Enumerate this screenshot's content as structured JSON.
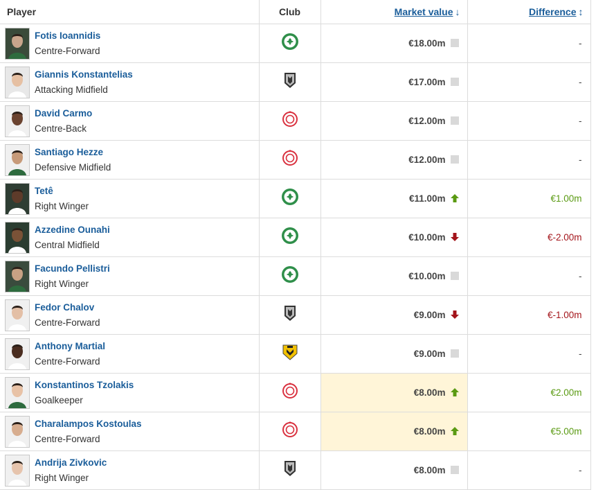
{
  "headers": {
    "player": "Player",
    "club": "Club",
    "market_value": "Market value",
    "market_value_sort_icon": "sort-desc-icon",
    "difference": "Difference",
    "difference_sort_icon": "sort-both-icon"
  },
  "colors": {
    "link": "#1a5d9a",
    "up": "#5a9a12",
    "down": "#a3141a",
    "highlight": "#fff5d8",
    "panathinaikos": "#2f8f4a",
    "paok": "#333333",
    "olympiacos": "#d9303e",
    "aek": "#f2c100"
  },
  "rows": [
    {
      "name": "Fotis Ioannidis",
      "position": "Centre-Forward",
      "club_icon": "panathinaikos-logo-icon",
      "value": "€18.00m",
      "trend": "none",
      "difference": "-"
    },
    {
      "name": "Giannis Konstantelias",
      "position": "Attacking Midfield",
      "club_icon": "paok-logo-icon",
      "value": "€17.00m",
      "trend": "none",
      "difference": "-"
    },
    {
      "name": "David Carmo",
      "position": "Centre-Back",
      "club_icon": "olympiacos-logo-icon",
      "value": "€12.00m",
      "trend": "none",
      "difference": "-"
    },
    {
      "name": "Santiago Hezze",
      "position": "Defensive Midfield",
      "club_icon": "olympiacos-logo-icon",
      "value": "€12.00m",
      "trend": "none",
      "difference": "-"
    },
    {
      "name": "Tetê",
      "position": "Right Winger",
      "club_icon": "panathinaikos-logo-icon",
      "value": "€11.00m",
      "trend": "up",
      "difference": "€1.00m"
    },
    {
      "name": "Azzedine Ounahi",
      "position": "Central Midfield",
      "club_icon": "panathinaikos-logo-icon",
      "value": "€10.00m",
      "trend": "down",
      "difference": "€-2.00m"
    },
    {
      "name": "Facundo Pellistri",
      "position": "Right Winger",
      "club_icon": "panathinaikos-logo-icon",
      "value": "€10.00m",
      "trend": "none",
      "difference": "-"
    },
    {
      "name": "Fedor Chalov",
      "position": "Centre-Forward",
      "club_icon": "paok-logo-icon",
      "value": "€9.00m",
      "trend": "down",
      "difference": "€-1.00m"
    },
    {
      "name": "Anthony Martial",
      "position": "Centre-Forward",
      "club_icon": "aek-logo-icon",
      "value": "€9.00m",
      "trend": "none",
      "difference": "-"
    },
    {
      "name": "Konstantinos Tzolakis",
      "position": "Goalkeeper",
      "club_icon": "olympiacos-logo-icon",
      "value": "€8.00m",
      "trend": "up",
      "difference": "€2.00m",
      "highlight": true
    },
    {
      "name": "Charalampos Kostoulas",
      "position": "Centre-Forward",
      "club_icon": "olympiacos-logo-icon",
      "value": "€8.00m",
      "trend": "up",
      "difference": "€5.00m",
      "highlight": true
    },
    {
      "name": "Andrija Zivkovic",
      "position": "Right Winger",
      "club_icon": "paok-logo-icon",
      "value": "€8.00m",
      "trend": "none",
      "difference": "-"
    }
  ]
}
